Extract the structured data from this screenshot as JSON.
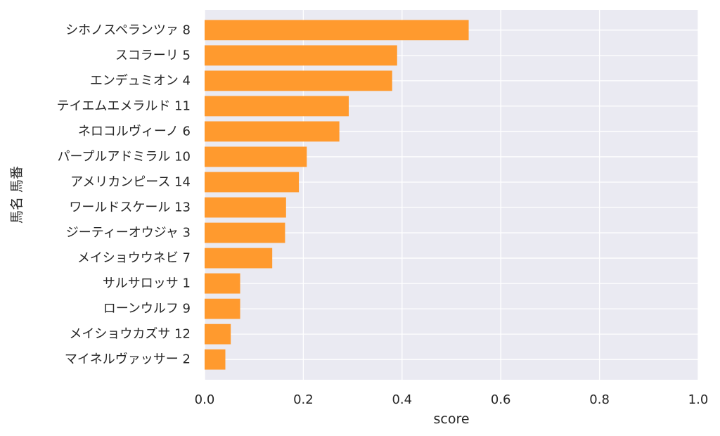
{
  "chart_data": {
    "type": "bar",
    "orientation": "horizontal",
    "categories": [
      "シホノスペランツァ 8",
      "スコラーリ 5",
      "エンデュミオン 4",
      "テイエムエメラルド 11",
      "ネロコルヴィーノ 6",
      "パープルアドミラル 10",
      "アメリカンピース 14",
      "ワールドスケール 13",
      "ジーティーオウジャ 3",
      "メイショウウネビ 7",
      "サルサロッサ 1",
      "ローンウルフ 9",
      "メイショウカズサ 12",
      "マイネルヴァッサー 2"
    ],
    "values": [
      0.535,
      0.39,
      0.38,
      0.292,
      0.273,
      0.207,
      0.191,
      0.165,
      0.163,
      0.137,
      0.072,
      0.072,
      0.053,
      0.042
    ],
    "xlabel": "score",
    "ylabel": "馬名 馬番",
    "xlim": [
      0,
      1.0
    ],
    "xticks": [
      "0.0",
      "0.2",
      "0.4",
      "0.6",
      "0.8",
      "1.0"
    ],
    "grid": true,
    "colors": {
      "bar": "#ff9a2e",
      "plot_bg": "#eaeaf2",
      "grid": "#ffffff"
    }
  }
}
